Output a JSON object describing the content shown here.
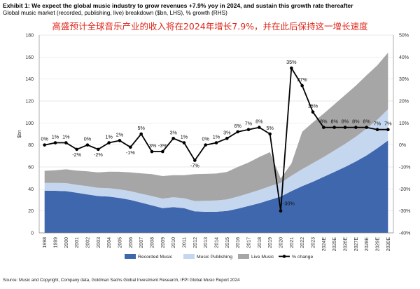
{
  "header": {
    "title": "Exhibit 1: We expect the global music industry to grow revenues +7.9% yoy in 2024, and sustain this growth rate thereafter",
    "subtitle": "Global music market (recorded, publishing, live) breakdown ($bn, LHS), % growth (RHS)",
    "cn_caption": "高盛预计全球音乐产业的收入将在2024年增长7.9%，并在此后保持这一增长速度"
  },
  "source": "Source: Music and Copyright, Company data, Goldman Sachs Global Investment Research, IFPI Global Music Report 2024",
  "colors": {
    "recorded": "#3f67ad",
    "publishing": "#c5d6ef",
    "live": "#a6a6a6",
    "growth_line": "#000000",
    "grid": "#e3e3e3"
  },
  "chart_data": {
    "type": "area",
    "stacked": true,
    "categories": [
      "1998",
      "1999",
      "2000",
      "2001",
      "2002",
      "2003",
      "2004",
      "2005",
      "2006",
      "2007",
      "2008",
      "2009",
      "2010",
      "2011",
      "2012",
      "2013",
      "2014",
      "2015",
      "2016",
      "2017",
      "2018",
      "2019",
      "2020",
      "2021",
      "2022",
      "2023",
      "2024E",
      "2025E",
      "2026E",
      "2027E",
      "2028E",
      "2029E",
      "2030E"
    ],
    "ylabel": "$bn",
    "ylim": [
      0,
      180
    ],
    "yticks": [
      0,
      20,
      40,
      60,
      80,
      100,
      120,
      140,
      160,
      180
    ],
    "y2lim": [
      -40,
      50
    ],
    "y2ticks": [
      -40,
      -30,
      -20,
      -10,
      0,
      10,
      20,
      30,
      40,
      50
    ],
    "y2tick_labels": [
      "-40%",
      "-30%",
      "-20%",
      "-10%",
      "0%",
      "10%",
      "20%",
      "30%",
      "40%",
      "50%"
    ],
    "grid": true,
    "legend_position": "bottom",
    "series": [
      {
        "name": "Recorded Music",
        "key": "recorded",
        "axis": "left",
        "values": [
          38.5,
          38.3,
          38,
          36.5,
          35,
          33.5,
          33,
          31.8,
          30,
          27.5,
          25,
          22.5,
          23.5,
          22.5,
          19.5,
          19.2,
          19.2,
          20,
          22,
          24.5,
          27,
          30,
          33,
          38,
          42.5,
          46.5,
          51,
          55.5,
          60,
          65,
          70.5,
          77,
          84
        ]
      },
      {
        "name": "Music  Publishing",
        "key": "publishing",
        "axis": "left",
        "values": [
          7,
          7.2,
          7.3,
          7.2,
          7.5,
          7.5,
          7.7,
          7.8,
          8,
          8.2,
          8.5,
          8.7,
          9,
          9,
          9.5,
          10,
          10.3,
          10.5,
          11,
          11.5,
          12,
          12.5,
          12.5,
          14,
          15.5,
          17,
          18,
          19.5,
          21,
          22.5,
          24.5,
          26,
          28.5
        ]
      },
      {
        "name": "Live Music",
        "key": "live",
        "axis": "left",
        "values": [
          11,
          11.5,
          12.5,
          13,
          13.5,
          14,
          15,
          16,
          17,
          18.5,
          20,
          20.5,
          20,
          21,
          24.5,
          24.5,
          24.5,
          25,
          27,
          28,
          30,
          31,
          4,
          11,
          34,
          37,
          39.5,
          42,
          44.5,
          46.5,
          48.5,
          49.5,
          51.5
        ]
      },
      {
        "name": "% change",
        "key": "growth",
        "axis": "right",
        "type": "line",
        "values": [
          0,
          1,
          1,
          -2,
          0,
          -2,
          1,
          2,
          -1,
          5,
          -3,
          -3,
          3,
          1,
          -7,
          0,
          1,
          3,
          6,
          7,
          8,
          5,
          -30,
          35,
          27,
          15,
          8,
          8,
          8,
          8,
          8,
          7,
          7
        ],
        "labels": [
          "0%",
          "1%",
          "1%",
          "-2%",
          "0%",
          "-2%",
          "1%",
          "2%",
          "-1%",
          "5%",
          "-3%",
          "-3%",
          "3%",
          "1%",
          "-7%",
          "0%",
          "1%",
          "3%",
          "6%",
          "7%",
          "8%",
          "5%",
          "-30%",
          "35%",
          "27%",
          "15%",
          "8%",
          "8%",
          "8%",
          "8%",
          "8%",
          "7%",
          "7%"
        ]
      }
    ]
  }
}
